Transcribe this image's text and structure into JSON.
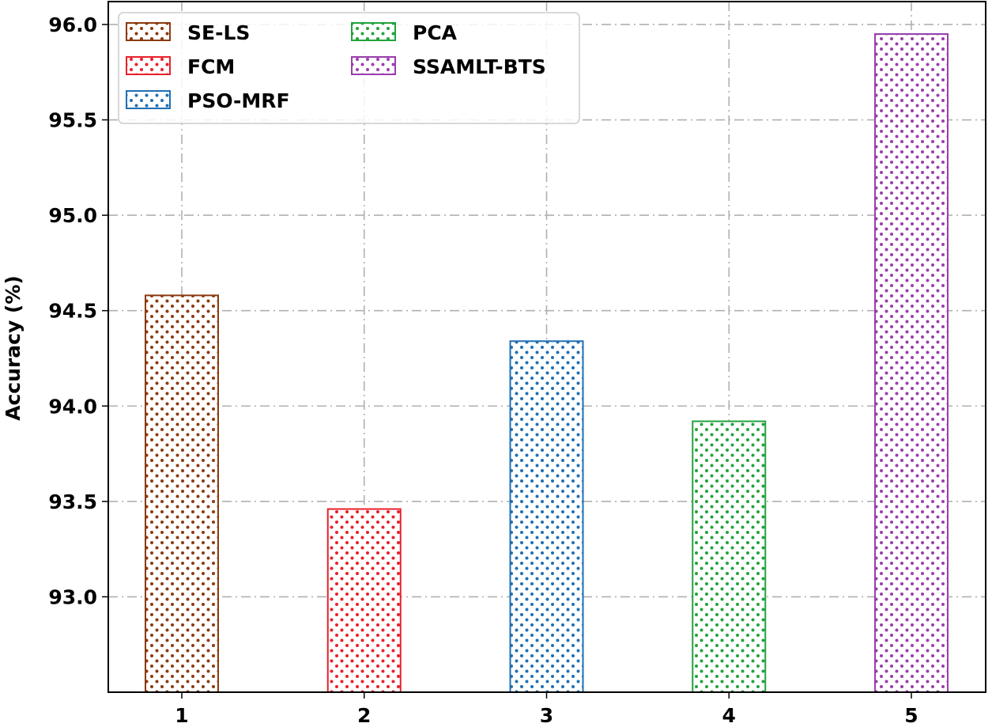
{
  "chart_data": {
    "type": "bar",
    "categories": [
      "1",
      "2",
      "3",
      "4",
      "5"
    ],
    "values": [
      94.58,
      93.46,
      94.34,
      93.92,
      95.95
    ],
    "series_names": [
      "SE-LS",
      "FCM",
      "PSO-MRF",
      "PCA",
      "SSAMLT-BTS"
    ],
    "colors": [
      "#8B3A0F",
      "#E8202A",
      "#1F6FB4",
      "#22A33C",
      "#9B3DAE"
    ],
    "xlabel": "",
    "ylabel": "Accuracy (%)",
    "ylim": [
      92.5,
      96.12
    ],
    "yticks": [
      "93.0",
      "93.5",
      "94.0",
      "94.5",
      "95.0",
      "95.5",
      "96.0"
    ],
    "grid": true,
    "grid_style": "dash-dot",
    "legend_position": "top-left",
    "legend_columns": 2,
    "hatch": "dots"
  }
}
